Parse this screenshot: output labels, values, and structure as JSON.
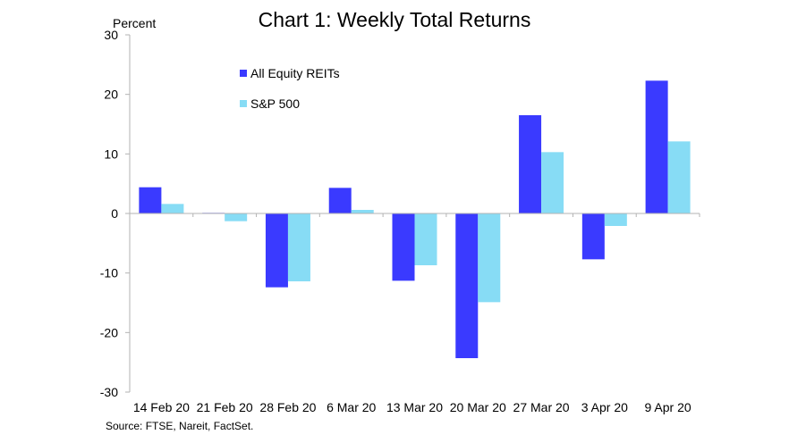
{
  "chart_data": {
    "type": "bar",
    "title": "Chart 1: Weekly Total Returns",
    "ylabel": "Percent",
    "xlabel": "",
    "ylim": [
      -30,
      30
    ],
    "yticks": [
      "30",
      "20",
      "10",
      "0",
      "-10",
      "-20",
      "-30"
    ],
    "categories": [
      "14 Feb 20",
      "21 Feb 20",
      "28 Feb 20",
      "6 Mar 20",
      "13 Mar 20",
      "20 Mar 20",
      "27 Mar 20",
      "3 Apr 20",
      "9 Apr 20"
    ],
    "series": [
      {
        "name": "All Equity REITs",
        "color": "#3a3aff",
        "values": [
          4.4,
          0.1,
          -12.4,
          4.3,
          -11.3,
          -24.3,
          16.5,
          -7.7,
          22.3
        ]
      },
      {
        "name": "S&P 500",
        "color": "#87dcf5",
        "values": [
          1.6,
          -1.3,
          -11.4,
          0.6,
          -8.7,
          -14.9,
          10.3,
          -2.1,
          12.1
        ]
      }
    ],
    "legend": "top-left",
    "grid": false,
    "source": "Source: FTSE,  Nareit, FactSet."
  }
}
